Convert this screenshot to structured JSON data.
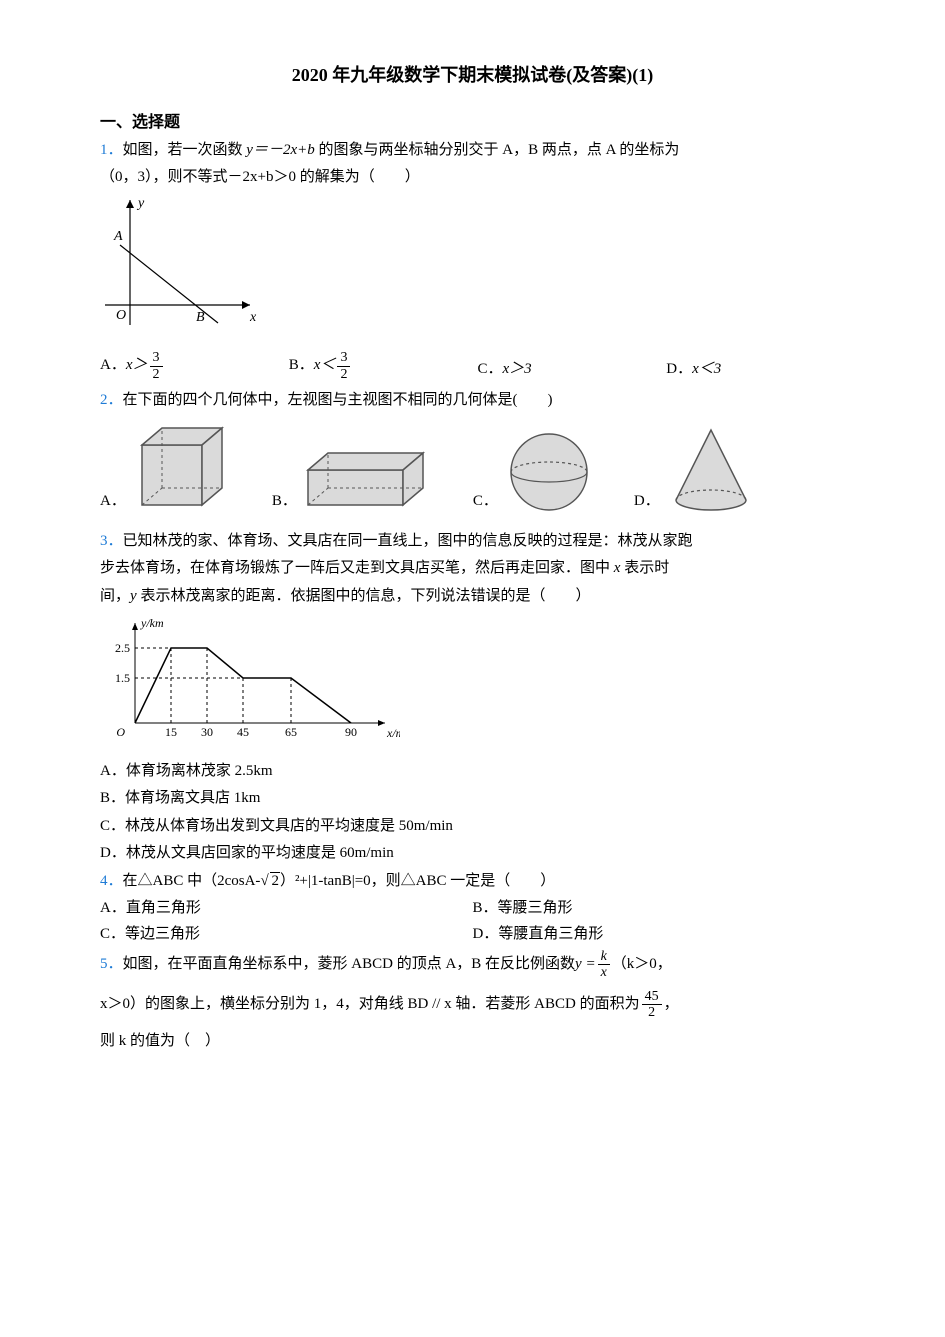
{
  "title": "2020 年九年级数学下期末模拟试卷(及答案)(1)",
  "section1": "一、选择题",
  "q1": {
    "num": "1．",
    "stem_a": "如图，若一次函数 ",
    "stem_eq": "y＝－2x+b",
    "stem_b": " 的图象与两坐标轴分别交于 A，B 两点，点 A 的坐标为",
    "stem_c": "（0，3），则不等式－2x+b＞0 的解集为（　　）",
    "optA_pre": "A．",
    "optA_var": "x＞",
    "optA_num": "3",
    "optA_den": "2",
    "optB_pre": "B．",
    "optB_var": "x＜",
    "optB_num": "3",
    "optB_den": "2",
    "optC_pre": "C．",
    "optC_txt": "x＞3",
    "optD_pre": "D．",
    "optD_txt": "x＜3",
    "graph": {
      "axis_color": "#000000",
      "line_color": "#000000",
      "A_label": "A",
      "B_label": "B",
      "O_label": "O",
      "x_label": "x",
      "y_label": "y",
      "A_y": 70,
      "B_x": 70
    }
  },
  "q2": {
    "num": "2．",
    "stem": "在下面的四个几何体中，左视图与主视图不相同的几何体是(　　)",
    "lblA": "A．",
    "lblB": "B．",
    "lblC": "C．",
    "lblD": "D．",
    "shape_stroke": "#555555",
    "shape_fill": "#dadada"
  },
  "q3": {
    "num": "3．",
    "line1": "已知林茂的家、体育场、文具店在同一直线上，图中的信息反映的过程是：林茂从家跑",
    "line2_a": "步去体育场，在体育场锻炼了一阵后又走到文具店买笔，然后再走回家．图中 ",
    "line2_var": "x",
    "line2_b": " 表示时",
    "line3_a": "间，",
    "line3_var": "y",
    "line3_b": " 表示林茂离家的距离．依据图中的信息，下列说法错误的是（　　）",
    "optA": "A．体育场离林茂家 2.5km",
    "optB": "B．体育场离文具店 1km",
    "optC": "C．林茂从体育场出发到文具店的平均速度是 50m/min",
    "optD": "D．林茂从文具店回家的平均速度是 60m/min",
    "graph": {
      "y_label": "y/km",
      "x_label": "x/min",
      "y_ticks": [
        "1.5",
        "2.5"
      ],
      "y_tick_vals": [
        1.5,
        2.5
      ],
      "x_ticks": [
        "15",
        "30",
        "45",
        "65",
        "90"
      ],
      "x_tick_vals": [
        15,
        30,
        45,
        65,
        90
      ],
      "O_label": "O",
      "points": [
        [
          0,
          0
        ],
        [
          15,
          2.5
        ],
        [
          30,
          2.5
        ],
        [
          45,
          1.5
        ],
        [
          65,
          1.5
        ],
        [
          90,
          0
        ]
      ],
      "axis_color": "#000000",
      "line_color": "#000000",
      "dash_color": "#000000",
      "x_max": 100,
      "y_max": 3
    }
  },
  "q4": {
    "num": "4．",
    "stem_a": "在△ABC 中（2cosA-",
    "stem_sqrt": "2",
    "stem_b": "）²+|1-tanB|=0，则△ABC 一定是（　　）",
    "optA": "A．直角三角形",
    "optB": "B．等腰三角形",
    "optC": "C．等边三角形",
    "optD": "D．等腰直角三角形"
  },
  "q5": {
    "num": "5．",
    "line1_a": "如图，在平面直角坐标系中，菱形 ABCD 的顶点 A，B 在反比例函数 ",
    "line1_eq_y": "y = ",
    "line1_frac_num": "k",
    "line1_frac_den": "x",
    "line1_b": "（k＞0，",
    "line2_a": "x＞0）的图象上，横坐标分别为 1，4，对角线 BD // x 轴．若菱形 ABCD 的面积为 ",
    "line2_frac_num": "45",
    "line2_frac_den": "2",
    "line2_b": "，",
    "line3": "则 k 的值为（　）"
  }
}
